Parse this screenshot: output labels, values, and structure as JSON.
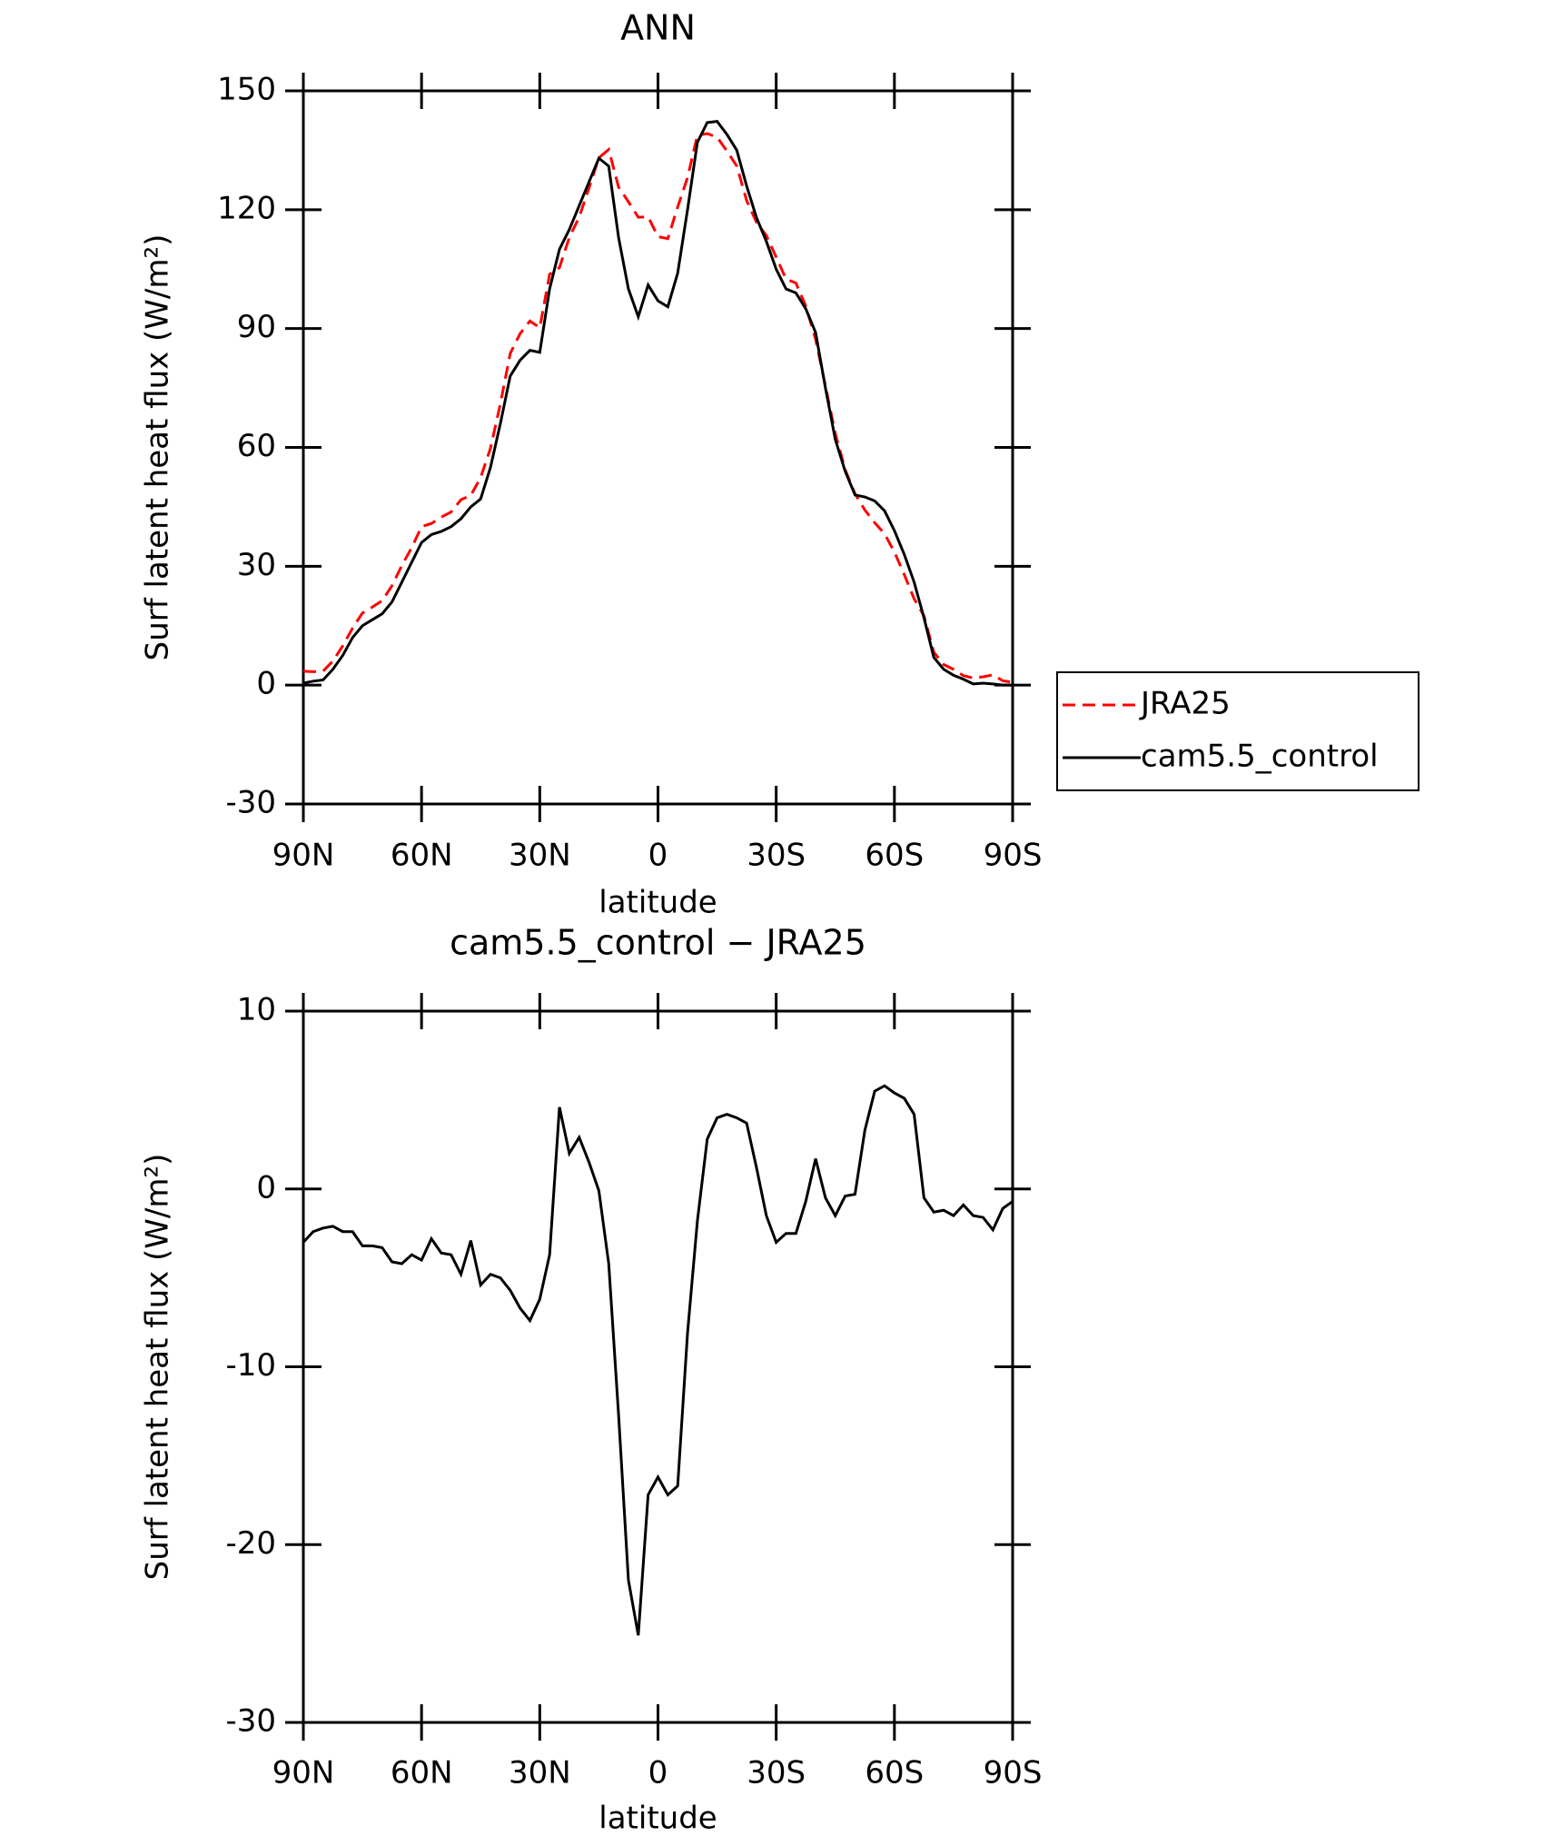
{
  "chart_data": [
    {
      "type": "line",
      "title": "ANN",
      "xlabel": "latitude",
      "ylabel": "Surf latent heat flux (W/m²)",
      "x": [
        90,
        87.5,
        85,
        82.5,
        80,
        77.5,
        75,
        72.5,
        70,
        67.5,
        65,
        62.5,
        60,
        57.5,
        55,
        52.5,
        50,
        47.5,
        45,
        42.5,
        40,
        37.5,
        35,
        32.5,
        30,
        27.5,
        25,
        22.5,
        20,
        17.5,
        15,
        12.5,
        10,
        7.5,
        5,
        2.5,
        0,
        -2.5,
        -5,
        -7.5,
        -10,
        -12.5,
        -15,
        -17.5,
        -20,
        -22.5,
        -25,
        -27.5,
        -30,
        -32.5,
        -35,
        -37.5,
        -40,
        -42.5,
        -45,
        -47.5,
        -50,
        -52.5,
        -55,
        -57.5,
        -60,
        -62.5,
        -65,
        -67.5,
        -70,
        -72.5,
        -75,
        -77.5,
        -80,
        -82.5,
        -85,
        -87.5,
        -90
      ],
      "series": [
        {
          "name": "JRA25",
          "color": "#ff0000",
          "style": "dashed",
          "values": [
            3.5,
            3.4,
            3.5,
            6.1,
            9.9,
            14.4,
            18.2,
            19.7,
            21.3,
            25.1,
            30.2,
            34.7,
            40,
            40.8,
            42.4,
            43.7,
            46.8,
            47.9,
            52.4,
            59.8,
            71,
            83.7,
            88.7,
            91.9,
            90.2,
            103.7,
            105.4,
            113,
            118.1,
            125.5,
            133.1,
            135.2,
            125.7,
            122,
            118.1,
            118.2,
            113.2,
            112.7,
            120.7,
            128.1,
            138.8,
            139.2,
            138.3,
            134.8,
            131,
            122.3,
            116.8,
            113.5,
            108,
            102.5,
            101.5,
            95.7,
            87.3,
            75.5,
            63.5,
            54.4,
            48.3,
            44.2,
            41,
            38.2,
            33.6,
            27.9,
            21.8,
            17.5,
            8.3,
            5.2,
            4,
            2.4,
            1.8,
            2.1,
            2.6,
            1.1,
            0.7
          ]
        },
        {
          "name": "cam5.5_control",
          "color": "#000000",
          "style": "solid",
          "values": [
            0.5,
            1,
            1.3,
            4,
            7.5,
            12,
            15,
            16.5,
            18,
            21,
            26,
            31,
            36,
            38,
            38.8,
            40,
            42,
            45,
            47,
            55,
            66,
            78,
            82,
            84.5,
            84,
            100,
            110,
            115,
            121,
            127,
            133,
            131,
            113,
            100,
            93,
            101,
            97,
            95.5,
            104,
            120,
            137,
            142,
            142.3,
            139,
            135,
            126,
            118,
            112,
            105,
            100,
            99,
            95,
            89,
            75,
            62,
            54,
            48,
            47.5,
            46.5,
            44,
            39,
            33,
            26,
            17,
            7,
            4,
            2.5,
            1.5,
            0.3,
            0.5,
            0.3,
            0,
            0
          ]
        }
      ],
      "xlim": [
        90,
        -90
      ],
      "xticks": [
        {
          "value": 90,
          "label": "90N"
        },
        {
          "value": 60,
          "label": "60N"
        },
        {
          "value": 30,
          "label": "30N"
        },
        0,
        {
          "value": -30,
          "label": "30S"
        },
        {
          "value": -60,
          "label": "60S"
        },
        {
          "value": -90,
          "label": "90S"
        }
      ],
      "ylim": [
        -30,
        150
      ],
      "yticks": [
        -30,
        0,
        30,
        60,
        90,
        120,
        150
      ],
      "legend": "right"
    },
    {
      "type": "line",
      "title": "cam5.5_control − JRA25",
      "xlabel": "latitude",
      "ylabel": "Surf latent heat flux (W/m²)",
      "x": [
        90,
        87.5,
        85,
        82.5,
        80,
        77.5,
        75,
        72.5,
        70,
        67.5,
        65,
        62.5,
        60,
        57.5,
        55,
        52.5,
        50,
        47.5,
        45,
        42.5,
        40,
        37.5,
        35,
        32.5,
        30,
        27.5,
        25,
        22.5,
        20,
        17.5,
        15,
        12.5,
        10,
        7.5,
        5,
        2.5,
        0,
        -2.5,
        -5,
        -7.5,
        -10,
        -12.5,
        -15,
        -17.5,
        -20,
        -22.5,
        -25,
        -27.5,
        -30,
        -32.5,
        -35,
        -37.5,
        -40,
        -42.5,
        -45,
        -47.5,
        -50,
        -52.5,
        -55,
        -57.5,
        -60,
        -62.5,
        -65,
        -67.5,
        -70,
        -72.5,
        -75,
        -77.5,
        -80,
        -82.5,
        -85,
        -87.5,
        -90
      ],
      "series": [
        {
          "color": "#000000",
          "style": "solid",
          "values": [
            -3,
            -2.4,
            -2.2,
            -2.1,
            -2.4,
            -2.4,
            -3.2,
            -3.2,
            -3.3,
            -4.1,
            -4.2,
            -3.7,
            -4,
            -2.8,
            -3.6,
            -3.7,
            -4.8,
            -2.9,
            -5.4,
            -4.8,
            -5,
            -5.7,
            -6.7,
            -7.4,
            -6.2,
            -3.7,
            4.6,
            2,
            2.9,
            1.5,
            -0.1,
            -4.2,
            -12.7,
            -22,
            -25.1,
            -17.2,
            -16.2,
            -17.2,
            -16.7,
            -8.1,
            -1.8,
            2.8,
            4,
            4.2,
            4,
            3.7,
            1.2,
            -1.5,
            -3,
            -2.5,
            -2.5,
            -0.7,
            1.7,
            -0.5,
            -1.5,
            -0.4,
            -0.3,
            3.3,
            5.5,
            5.8,
            5.4,
            5.1,
            4.2,
            -0.5,
            -1.3,
            -1.2,
            -1.5,
            -0.9,
            -1.5,
            -1.6,
            -2.3,
            -1.1,
            -0.7
          ]
        }
      ],
      "xlim": [
        90,
        -90
      ],
      "xticks": [
        {
          "value": 90,
          "label": "90N"
        },
        {
          "value": 60,
          "label": "60N"
        },
        {
          "value": 30,
          "label": "30N"
        },
        0,
        {
          "value": -30,
          "label": "30S"
        },
        {
          "value": -60,
          "label": "60S"
        },
        {
          "value": -90,
          "label": "90S"
        }
      ],
      "ylim": [
        -30,
        10
      ],
      "yticks": [
        -30,
        -20,
        -10,
        0,
        10
      ]
    }
  ]
}
